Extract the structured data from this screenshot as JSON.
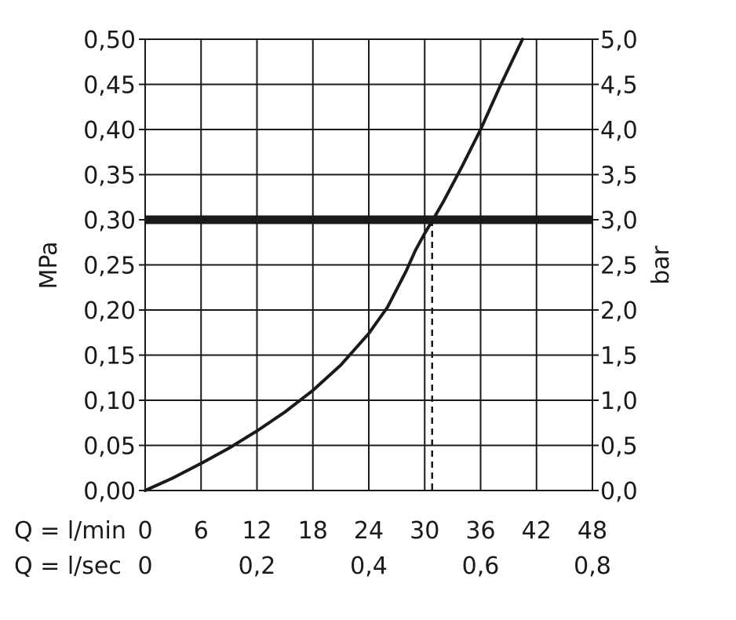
{
  "chart_data": {
    "type": "line",
    "x_label_flow_min": "Q = l/min",
    "x_label_flow_sec": "Q = l/sec",
    "ylabel_left": "MPa",
    "ylabel_right": "bar",
    "xlim": [
      0,
      48
    ],
    "ylim_left": [
      0,
      0.5
    ],
    "ylim_right": [
      0,
      5.0
    ],
    "x_ticks_lmin": [
      {
        "value": 0,
        "label": "0"
      },
      {
        "value": 6,
        "label": "6"
      },
      {
        "value": 12,
        "label": "12"
      },
      {
        "value": 18,
        "label": "18"
      },
      {
        "value": 24,
        "label": "24"
      },
      {
        "value": 30,
        "label": "30"
      },
      {
        "value": 36,
        "label": "36"
      },
      {
        "value": 42,
        "label": "42"
      },
      {
        "value": 48,
        "label": "48"
      }
    ],
    "x_ticks_lsec": [
      {
        "value": 0,
        "label": "0"
      },
      {
        "value": 12,
        "label": "0,2"
      },
      {
        "value": 24,
        "label": "0,4"
      },
      {
        "value": 36,
        "label": "0,6"
      },
      {
        "value": 48,
        "label": "0,8"
      }
    ],
    "y_ticks_left": [
      {
        "value": 0.0,
        "label": "0,00"
      },
      {
        "value": 0.05,
        "label": "0,05"
      },
      {
        "value": 0.1,
        "label": "0,10"
      },
      {
        "value": 0.15,
        "label": "0,15"
      },
      {
        "value": 0.2,
        "label": "0,20"
      },
      {
        "value": 0.25,
        "label": "0,25"
      },
      {
        "value": 0.3,
        "label": "0,30"
      },
      {
        "value": 0.35,
        "label": "0,35"
      },
      {
        "value": 0.4,
        "label": "0,40"
      },
      {
        "value": 0.45,
        "label": "0,45"
      },
      {
        "value": 0.5,
        "label": "0,50"
      }
    ],
    "y_ticks_right": [
      {
        "value": 0.0,
        "label": "0,0"
      },
      {
        "value": 0.05,
        "label": "0,5"
      },
      {
        "value": 0.1,
        "label": "1,0"
      },
      {
        "value": 0.15,
        "label": "1,5"
      },
      {
        "value": 0.2,
        "label": "2,0"
      },
      {
        "value": 0.25,
        "label": "2,5"
      },
      {
        "value": 0.3,
        "label": "3,0"
      },
      {
        "value": 0.35,
        "label": "3,5"
      },
      {
        "value": 0.4,
        "label": "4,0"
      },
      {
        "value": 0.45,
        "label": "4,5"
      },
      {
        "value": 0.5,
        "label": "5,0"
      }
    ],
    "grid": true,
    "series": [
      {
        "points": [
          [
            0,
            0.0
          ],
          [
            3,
            0.014
          ],
          [
            6,
            0.03
          ],
          [
            9,
            0.047
          ],
          [
            12,
            0.066
          ],
          [
            15,
            0.087
          ],
          [
            18,
            0.111
          ],
          [
            21,
            0.139
          ],
          [
            24,
            0.174
          ],
          [
            26,
            0.203
          ],
          [
            28,
            0.243
          ],
          [
            29,
            0.266
          ],
          [
            30,
            0.285
          ],
          [
            31,
            0.302
          ],
          [
            32,
            0.32
          ],
          [
            34,
            0.359
          ],
          [
            36,
            0.4
          ],
          [
            38,
            0.446
          ],
          [
            40.5,
            0.5
          ]
        ]
      }
    ],
    "reference_line": {
      "y": 0.3
    },
    "marker_line": {
      "x": 30.8,
      "y_from": 0.0,
      "y_to": 0.3,
      "style": "dashed"
    },
    "colors": {
      "line": "#1a1a1a",
      "grid": "#1a1a1a",
      "background": "#ffffff"
    }
  }
}
